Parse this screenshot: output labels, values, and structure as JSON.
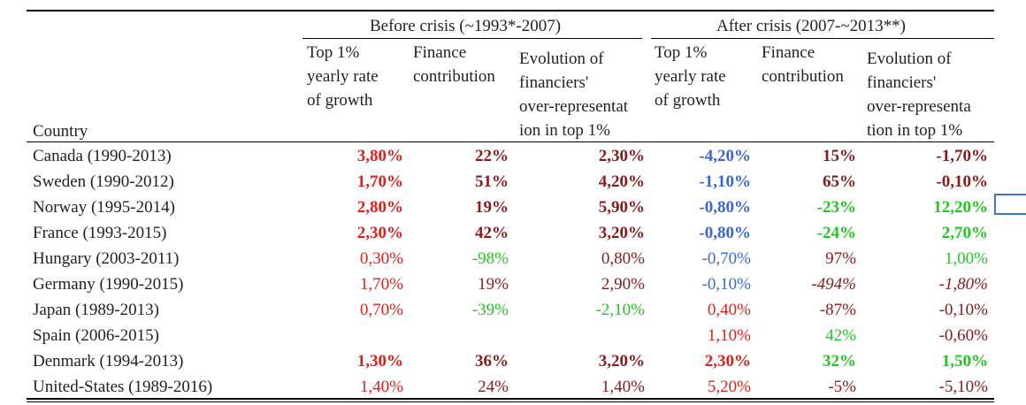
{
  "groups": {
    "before": "Before crisis (~1993*-2007)",
    "after": "After crisis (2007-~2013**)"
  },
  "headers": {
    "country": "Country",
    "before": [
      "Top 1%\nyearly rate\nof growth",
      "Finance\ncontribution",
      "Evolution of\nfinanciers'\nover-representat\nion in top 1%"
    ],
    "after": [
      "Top 1%\nyearly rate\nof growth",
      "Finance\ncontribution",
      "Evolution of\nfinanciers'\nover-representa\ntion in top 1%"
    ]
  },
  "colors": {
    "dark_red": "#8b1a1a",
    "red": "#e0201b",
    "blue": "#3a66d9",
    "green": "#1fc91f",
    "text": "#222222"
  },
  "rows": [
    {
      "country": "Canada (1990-2013)",
      "cells": [
        {
          "v": "3,80%",
          "c": "red",
          "b": true
        },
        {
          "v": "22%",
          "c": "dark_red",
          "b": true
        },
        {
          "v": "2,30%",
          "c": "dark_red",
          "b": true
        },
        {
          "v": "-4,20%",
          "c": "blue",
          "b": true
        },
        {
          "v": "15%",
          "c": "dark_red",
          "b": true
        },
        {
          "v": "-1,70%",
          "c": "dark_red",
          "b": true
        }
      ]
    },
    {
      "country": "Sweden (1990-2012)",
      "cells": [
        {
          "v": "1,70%",
          "c": "red",
          "b": true
        },
        {
          "v": "51%",
          "c": "dark_red",
          "b": true
        },
        {
          "v": "4,20%",
          "c": "dark_red",
          "b": true
        },
        {
          "v": "-1,10%",
          "c": "blue",
          "b": true
        },
        {
          "v": "65%",
          "c": "dark_red",
          "b": true
        },
        {
          "v": "-0,10%",
          "c": "dark_red",
          "b": true
        }
      ]
    },
    {
      "country": "Norway (1995-2014)",
      "cells": [
        {
          "v": "2,80%",
          "c": "red",
          "b": true
        },
        {
          "v": "19%",
          "c": "dark_red",
          "b": true
        },
        {
          "v": "5,90%",
          "c": "dark_red",
          "b": true
        },
        {
          "v": "-0,80%",
          "c": "blue",
          "b": true
        },
        {
          "v": "-23%",
          "c": "green",
          "b": true
        },
        {
          "v": "12,20%",
          "c": "green",
          "b": true
        }
      ]
    },
    {
      "country": "France (1993-2015)",
      "cells": [
        {
          "v": "2,30%",
          "c": "red",
          "b": true
        },
        {
          "v": "42%",
          "c": "dark_red",
          "b": true
        },
        {
          "v": "3,20%",
          "c": "dark_red",
          "b": true
        },
        {
          "v": "-0,80%",
          "c": "blue",
          "b": true
        },
        {
          "v": "-24%",
          "c": "green",
          "b": true
        },
        {
          "v": "2,70%",
          "c": "green",
          "b": true
        }
      ]
    },
    {
      "country": "Hungary (2003-2011)",
      "cells": [
        {
          "v": "0,30%",
          "c": "red"
        },
        {
          "v": "-98%",
          "c": "green"
        },
        {
          "v": "0,80%",
          "c": "dark_red"
        },
        {
          "v": "-0,70%",
          "c": "blue"
        },
        {
          "v": "97%",
          "c": "dark_red"
        },
        {
          "v": "1,00%",
          "c": "green"
        }
      ]
    },
    {
      "country": "Germany (1990-2015)",
      "cells": [
        {
          "v": "1,70%",
          "c": "red"
        },
        {
          "v": "19%",
          "c": "dark_red"
        },
        {
          "v": "2,90%",
          "c": "dark_red"
        },
        {
          "v": "-0,10%",
          "c": "blue"
        },
        {
          "v": "-494%",
          "c": "dark_red",
          "i": true
        },
        {
          "v": "-1,80%",
          "c": "dark_red",
          "i": true
        }
      ]
    },
    {
      "country": "Japan (1989-2013)",
      "cells": [
        {
          "v": "0,70%",
          "c": "red"
        },
        {
          "v": "-39%",
          "c": "green"
        },
        {
          "v": "-2,10%",
          "c": "green"
        },
        {
          "v": "0,40%",
          "c": "red"
        },
        {
          "v": "-87%",
          "c": "dark_red"
        },
        {
          "v": "-0,10%",
          "c": "dark_red"
        }
      ]
    },
    {
      "country": "Spain (2006-2015)",
      "cells": [
        {
          "v": "",
          "c": "text"
        },
        {
          "v": "",
          "c": "text"
        },
        {
          "v": "",
          "c": "text"
        },
        {
          "v": "1,10%",
          "c": "red"
        },
        {
          "v": "42%",
          "c": "green"
        },
        {
          "v": "-0,60%",
          "c": "dark_red"
        }
      ]
    },
    {
      "country": "Denmark (1994-2013)",
      "cells": [
        {
          "v": "1,30%",
          "c": "red",
          "b": true
        },
        {
          "v": "36%",
          "c": "dark_red",
          "b": true
        },
        {
          "v": "3,20%",
          "c": "dark_red",
          "b": true
        },
        {
          "v": "2,30%",
          "c": "red",
          "b": true
        },
        {
          "v": "32%",
          "c": "green",
          "b": true
        },
        {
          "v": "1,50%",
          "c": "green",
          "b": true
        }
      ]
    },
    {
      "country": "United-States (1989-2016)",
      "cells": [
        {
          "v": "1,40%",
          "c": "red"
        },
        {
          "v": "24%",
          "c": "dark_red"
        },
        {
          "v": "1,40%",
          "c": "dark_red"
        },
        {
          "v": "5,20%",
          "c": "red"
        },
        {
          "v": "-5%",
          "c": "dark_red"
        },
        {
          "v": "-5,10%",
          "c": "dark_red"
        }
      ]
    }
  ]
}
